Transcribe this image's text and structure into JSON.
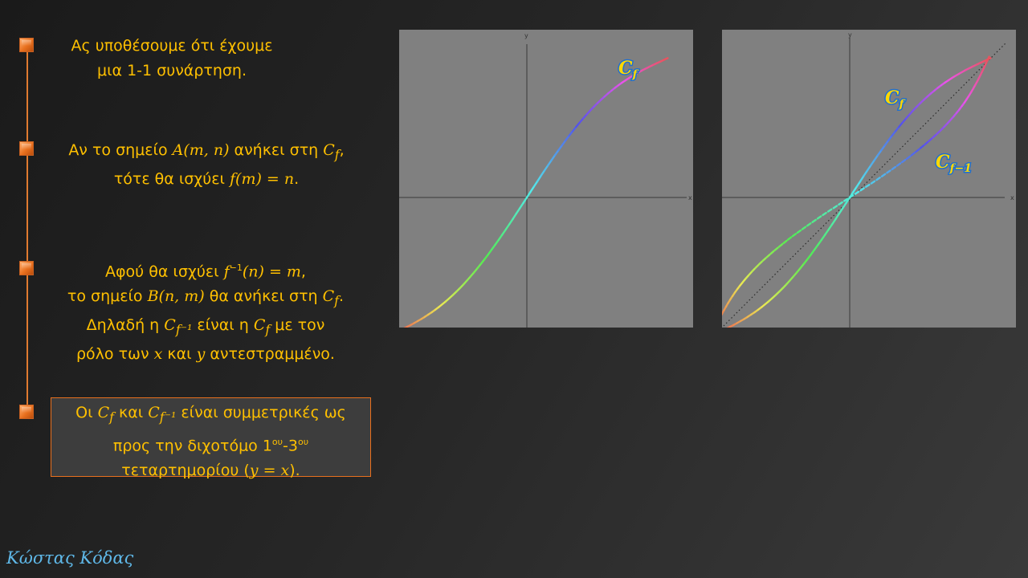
{
  "bullets": [
    {
      "lines": [
        [
          {
            "t": "Ας υποθέσουμε ότι έχουμε"
          }
        ],
        [
          {
            "t": "μια 1-1 συνάρτηση."
          }
        ]
      ]
    },
    {
      "lines": [
        [
          {
            "t": "Αν το σημείο "
          },
          {
            "m": "A(m, n)"
          },
          {
            "t": " ανήκει στη "
          },
          {
            "m": "C",
            "sub": "f"
          },
          {
            "t": ","
          }
        ],
        [
          {
            "t": "τότε θα ισχύει "
          },
          {
            "m": "f(m) = n"
          },
          {
            "t": "."
          }
        ]
      ]
    },
    {
      "lines": [
        [
          {
            "t": "Αφού θα ισχύει "
          },
          {
            "m": "f",
            "sup": "−1"
          },
          {
            "m": "(n) = m"
          },
          {
            "t": ","
          }
        ],
        [
          {
            "t": "το σημείο "
          },
          {
            "m": "B(n, m)"
          },
          {
            "t": " θα ανήκει στη "
          },
          {
            "m": "C",
            "sub": "f"
          },
          {
            "t": "."
          }
        ],
        [
          {
            "t": "Δηλαδή η "
          },
          {
            "m": "C",
            "sub": "f⁻¹"
          },
          {
            "t": " είναι η "
          },
          {
            "m": "C",
            "sub": "f"
          },
          {
            "t": " με τον"
          }
        ],
        [
          {
            "t": "ρόλο των "
          },
          {
            "m": "x"
          },
          {
            "t": " και "
          },
          {
            "m": "y"
          },
          {
            "t": " αντεστραμμένο."
          }
        ]
      ]
    },
    {
      "lines": [
        [
          {
            "t": "Οι "
          },
          {
            "m": "C",
            "sub": "f"
          },
          {
            "t": " και "
          },
          {
            "m": "C",
            "sub": "f⁻¹"
          },
          {
            "t": " είναι συμμετρικές ως"
          }
        ],
        [
          {
            "t": "προς την διχοτόμο 1"
          },
          {
            "sup": "ου"
          },
          {
            "t": "-3"
          },
          {
            "sup": "ου"
          }
        ],
        [
          {
            "t": "τεταρτημορίου ("
          },
          {
            "m": "y = x"
          },
          {
            "t": ")."
          }
        ]
      ]
    }
  ],
  "graph_left": {
    "x_axis_label": "x",
    "y_axis_label": "y",
    "curve_label": "C",
    "curve_label_sub": "f"
  },
  "graph_right": {
    "x_axis_label": "x",
    "y_axis_label": "y",
    "curve_label": "C",
    "curve_label_sub": "f",
    "inverse_label": "C",
    "inverse_label_sub": "f−1"
  },
  "signature": "Κώστας Κόδας",
  "colors": {
    "text": "#ffc000",
    "accent": "#e8701e",
    "plot_bg": "#808080",
    "signature": "#5fb8e8"
  }
}
